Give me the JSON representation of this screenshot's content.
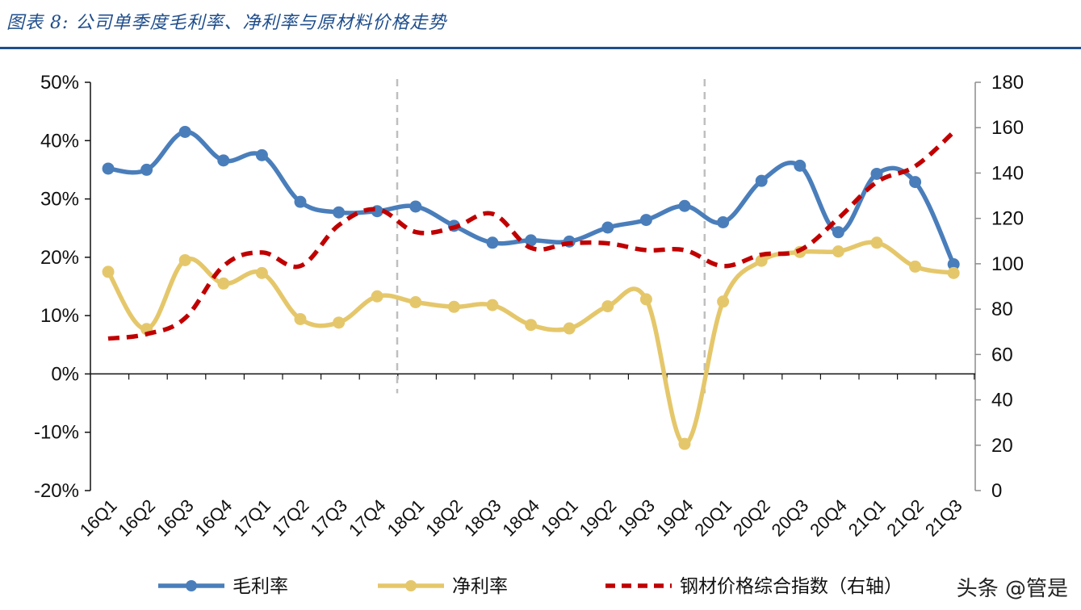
{
  "header": {
    "title": "图表 8:  公司单季度毛利率、净利率与原材料价格走势"
  },
  "watermark": "头条 @管是",
  "colors": {
    "gross": "#4a7ebb",
    "net": "#e5c76b",
    "steel": "#c00000",
    "rule": "#1f4e8c",
    "divider": "#bfbfbf"
  },
  "chart_data": {
    "type": "line",
    "categories": [
      "16Q1",
      "16Q2",
      "16Q3",
      "16Q4",
      "17Q1",
      "17Q2",
      "17Q3",
      "17Q4",
      "18Q1",
      "18Q2",
      "18Q3",
      "18Q4",
      "19Q1",
      "19Q2",
      "19Q3",
      "19Q4",
      "20Q1",
      "20Q2",
      "20Q3",
      "20Q4",
      "21Q1",
      "21Q2",
      "21Q3"
    ],
    "left_axis": {
      "ylim": [
        -20,
        50
      ],
      "ticks": [
        -20,
        -10,
        0,
        10,
        20,
        30,
        40,
        50
      ],
      "tick_labels": [
        "-20%",
        "-10%",
        "0%",
        "10%",
        "20%",
        "30%",
        "40%",
        "50%"
      ]
    },
    "right_axis": {
      "ylim": [
        0,
        180
      ],
      "ticks": [
        0,
        20,
        40,
        60,
        80,
        100,
        120,
        140,
        160,
        180
      ],
      "tick_labels": [
        "0",
        "20",
        "40",
        "60",
        "80",
        "100",
        "120",
        "140",
        "160",
        "180"
      ]
    },
    "series": [
      {
        "name": "毛利率",
        "axis": "left",
        "style": "solid-marker",
        "values": [
          35.2,
          35.0,
          41.5,
          36.6,
          37.5,
          29.5,
          27.7,
          27.9,
          28.7,
          25.4,
          22.5,
          22.9,
          22.7,
          25.1,
          26.4,
          28.8,
          26.0,
          33.1,
          35.7,
          24.3,
          34.3,
          32.9,
          18.8
        ]
      },
      {
        "name": "净利率",
        "axis": "left",
        "style": "solid-marker",
        "values": [
          17.5,
          7.7,
          19.5,
          15.5,
          17.3,
          9.4,
          8.8,
          13.3,
          12.3,
          11.5,
          11.8,
          8.4,
          7.8,
          11.6,
          12.8,
          -12.0,
          12.4,
          19.4,
          20.9,
          21.0,
          22.5,
          18.4,
          17.3
        ]
      },
      {
        "name": "钢材价格综合指数（右轴）",
        "axis": "right",
        "style": "dashed",
        "values": [
          67,
          69,
          76,
          99,
          105,
          99,
          117,
          124,
          114,
          116,
          122,
          107,
          109,
          109,
          106,
          106,
          99,
          104,
          106,
          120,
          136,
          143,
          158
        ]
      }
    ],
    "dividers_after": [
      "17Q4",
      "19Q4"
    ],
    "legend": {
      "placement": "bottom",
      "labels": [
        "毛利率",
        "净利率",
        "钢材价格综合指数（右轴）"
      ]
    },
    "grid": false,
    "title": ""
  }
}
